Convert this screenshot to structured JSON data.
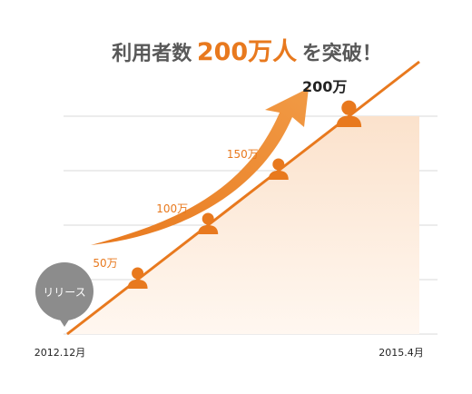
{
  "title": {
    "prefix": "利用者数",
    "highlight": "200万人",
    "suffix": "を突破！"
  },
  "badge": {
    "label": "リリース"
  },
  "colors": {
    "accent": "#e8791e",
    "accent_light": "#f19a45",
    "area_top": "#fbe2cc",
    "area_bottom": "#fff7f0",
    "grid": "#d9d9d9",
    "title_gray": "#595959",
    "badge_gray": "#8c8c8c"
  },
  "icons": {
    "milestone": "person-icon",
    "trend": "arrow-up-icon"
  },
  "chart_data": {
    "type": "area",
    "x": [
      "2012.12月",
      "",
      "",
      "",
      "",
      "2015.4月"
    ],
    "values": [
      0,
      50,
      100,
      150,
      200,
      250
    ],
    "ylim": [
      0,
      200
    ],
    "point_labels": [
      "",
      "50万",
      "100万",
      "150万",
      "200万",
      ""
    ],
    "ytick_count": 4,
    "grid": true,
    "legend": "none"
  }
}
